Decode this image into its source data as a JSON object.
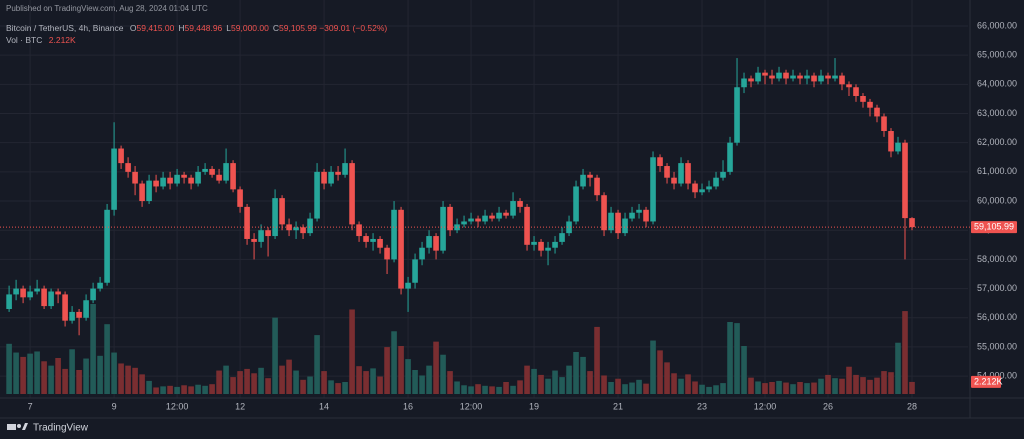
{
  "chart_data": {
    "type": "candlestick",
    "published": "Published on TradingView.com, Aug 28, 2024 01:04 UTC",
    "title": "Bitcoin / TetherUS, 4h, Binance",
    "ohlc_legend": [
      {
        "key": "O",
        "label": "59,415.00"
      },
      {
        "key": "H",
        "label": "59,448.96"
      },
      {
        "key": "L",
        "label": "59,000.00"
      },
      {
        "key": "C",
        "label": "59,105.99"
      }
    ],
    "change_label": "−309.01 (−0.52%)",
    "volume_title": "Vol · BTC",
    "volume_label": "2.212K",
    "last_price": {
      "value": 59105.99,
      "label": "59,105.99"
    },
    "footer": "TradingView",
    "up_color": "#26a69a",
    "down_color": "#ef5350",
    "volume_up_color": "#225b58",
    "volume_down_color": "#7a2e31",
    "grid": true,
    "xlim": [
      -1.3,
      137
    ],
    "ylim": [
      53250,
      66890
    ],
    "xticks": [
      {
        "value": 3,
        "label": "7"
      },
      {
        "value": 15,
        "label": "9"
      },
      {
        "value": 24,
        "label": "12:00"
      },
      {
        "value": 33,
        "label": "12"
      },
      {
        "value": 45,
        "label": "14"
      },
      {
        "value": 57,
        "label": "16"
      },
      {
        "value": 66,
        "label": "12:00"
      },
      {
        "value": 75,
        "label": "19"
      },
      {
        "value": 87,
        "label": "21"
      },
      {
        "value": 99,
        "label": "23"
      },
      {
        "value": 108,
        "label": "12:00"
      },
      {
        "value": 117,
        "label": "26"
      },
      {
        "value": 129,
        "label": "28"
      }
    ],
    "yticks": [
      {
        "value": 66000,
        "label": "66,000.00"
      },
      {
        "value": 65000,
        "label": "65,000.00"
      },
      {
        "value": 64000,
        "label": "64,000.00"
      },
      {
        "value": 63000,
        "label": "63,000.00"
      },
      {
        "value": 62000,
        "label": "62,000.00"
      },
      {
        "value": 61000,
        "label": "61,000.00"
      },
      {
        "value": 60000,
        "label": "60,000.00"
      },
      {
        "value": 59000,
        "label": "59,000.00"
      },
      {
        "value": 58000,
        "label": "58,000.00"
      },
      {
        "value": 57000,
        "label": "57,000.00"
      },
      {
        "value": 56000,
        "label": "56,000.00"
      },
      {
        "value": 55000,
        "label": "55,000.00"
      },
      {
        "value": 54000,
        "label": "54,000.00"
      }
    ],
    "open": [
      56300,
      56800,
      57000,
      56700,
      56900,
      57000,
      56400,
      56900,
      56800,
      55900,
      56200,
      56000,
      56600,
      57000,
      57200,
      59700,
      61800,
      61300,
      61000,
      60600,
      60000,
      60700,
      60500,
      60800,
      60600,
      60900,
      60800,
      60600,
      61000,
      61100,
      60900,
      60700,
      61300,
      60400,
      59800,
      58700,
      58600,
      59000,
      58800,
      60100,
      59200,
      59000,
      59100,
      58900,
      59400,
      61000,
      60600,
      61000,
      60900,
      61300,
      59200,
      58800,
      58600,
      58700,
      58400,
      58000,
      59700,
      57000,
      57200,
      58000,
      58400,
      58800,
      58300,
      59800,
      59000,
      59200,
      59300,
      59400,
      59300,
      59500,
      59400,
      59600,
      59500,
      60000,
      59800,
      58500,
      58600,
      58300,
      58400,
      58600,
      58900,
      59300,
      60500,
      60900,
      60800,
      60200,
      59000,
      59600,
      58900,
      59400,
      59600,
      59700,
      59300,
      61500,
      61200,
      60800,
      60600,
      61300,
      60600,
      60300,
      60400,
      60500,
      60800,
      61000,
      62000,
      63900,
      64200,
      64100,
      64400,
      64300,
      64200,
      64400,
      64200,
      64300,
      64200,
      64300,
      64100,
      64300,
      64200,
      64300,
      64000,
      63900,
      63600,
      63400,
      63200,
      62900,
      62400,
      61700,
      62000,
      59415
    ],
    "high": [
      57100,
      57300,
      57100,
      57100,
      57300,
      57100,
      57000,
      57000,
      56900,
      56400,
      56300,
      56800,
      57200,
      57400,
      59900,
      62700,
      61900,
      61500,
      61200,
      60700,
      60900,
      60900,
      61000,
      61000,
      61100,
      61000,
      60900,
      61200,
      61300,
      61200,
      61100,
      61800,
      61400,
      60500,
      59900,
      58900,
      59200,
      59100,
      60400,
      60200,
      59400,
      59300,
      59200,
      59600,
      61300,
      61100,
      61200,
      61200,
      61800,
      61400,
      59300,
      58900,
      58900,
      58800,
      58500,
      60000,
      59800,
      57400,
      58200,
      58600,
      59000,
      58900,
      60000,
      59900,
      59400,
      59500,
      59600,
      59500,
      59700,
      59600,
      59800,
      59700,
      60300,
      60100,
      59900,
      58800,
      58700,
      58600,
      58800,
      59100,
      59500,
      60700,
      61100,
      61000,
      60900,
      60300,
      59800,
      59700,
      59600,
      59800,
      59900,
      59800,
      61700,
      61600,
      61300,
      61000,
      61500,
      61400,
      60700,
      60600,
      60700,
      61000,
      61400,
      62200,
      64900,
      64400,
      64300,
      64600,
      64500,
      64500,
      64600,
      64500,
      64500,
      64400,
      64500,
      64400,
      64500,
      64400,
      64900,
      64400,
      64100,
      64000,
      63700,
      63500,
      63300,
      63000,
      62500,
      62200,
      62100,
      59448.96
    ],
    "low": [
      56200,
      56600,
      56500,
      56600,
      56800,
      56300,
      56300,
      56500,
      55700,
      55800,
      55400,
      55900,
      56500,
      56900,
      57100,
      59500,
      61100,
      60800,
      60200,
      59800,
      59900,
      60300,
      60400,
      60400,
      60500,
      60600,
      60400,
      60500,
      60900,
      60800,
      60600,
      60600,
      60300,
      59600,
      58500,
      58000,
      58400,
      58100,
      58700,
      59000,
      58800,
      58700,
      58700,
      58800,
      59300,
      60400,
      60500,
      60700,
      60800,
      59000,
      58600,
      58400,
      58300,
      58200,
      57500,
      57900,
      56800,
      56200,
      57000,
      57800,
      58200,
      58000,
      58200,
      58800,
      58900,
      59100,
      59200,
      59100,
      59200,
      59300,
      59300,
      59400,
      59400,
      59600,
      58300,
      58300,
      58100,
      57800,
      58200,
      58500,
      58800,
      59200,
      60400,
      60500,
      60000,
      58800,
      58900,
      58700,
      58800,
      59300,
      59400,
      59100,
      59200,
      61000,
      60600,
      60400,
      60500,
      60400,
      60100,
      60200,
      60300,
      60400,
      60700,
      60900,
      61900,
      63700,
      63900,
      64000,
      64000,
      64000,
      64100,
      64000,
      64100,
      64000,
      64000,
      63900,
      64000,
      64000,
      64100,
      63800,
      63600,
      63400,
      63200,
      62900,
      62700,
      62200,
      61500,
      61600,
      58000,
      59000
    ],
    "close": [
      56800,
      57000,
      56700,
      56900,
      57000,
      56400,
      56900,
      56800,
      55900,
      56200,
      56000,
      56600,
      57000,
      57200,
      59700,
      61800,
      61300,
      61000,
      60600,
      60000,
      60700,
      60500,
      60800,
      60600,
      60900,
      60800,
      60600,
      61000,
      61100,
      60900,
      60700,
      61300,
      60400,
      59800,
      58700,
      58600,
      59000,
      58800,
      60100,
      59200,
      59000,
      59100,
      58900,
      59400,
      61000,
      60600,
      61000,
      60900,
      61300,
      59200,
      58800,
      58600,
      58700,
      58400,
      58000,
      59700,
      57000,
      57200,
      58000,
      58400,
      58800,
      58300,
      59800,
      59000,
      59200,
      59300,
      59400,
      59300,
      59500,
      59400,
      59600,
      59500,
      60000,
      59800,
      58500,
      58600,
      58300,
      58400,
      58600,
      58900,
      59300,
      60500,
      60900,
      60800,
      60200,
      59000,
      59600,
      58900,
      59400,
      59600,
      59700,
      59300,
      61500,
      61200,
      60800,
      60600,
      61300,
      60600,
      60300,
      60400,
      60500,
      60800,
      61000,
      62000,
      63900,
      64200,
      64100,
      64400,
      64300,
      64200,
      64400,
      64200,
      64300,
      64200,
      64300,
      64100,
      64300,
      64200,
      64300,
      64000,
      63900,
      63600,
      63400,
      63200,
      62900,
      62400,
      61700,
      62000,
      59415,
      59105.99
    ],
    "volume": [
      9200,
      7600,
      6800,
      7400,
      7800,
      6000,
      5200,
      6600,
      4600,
      8200,
      4400,
      6500,
      16500,
      7000,
      12800,
      7600,
      5600,
      5200,
      4800,
      3600,
      2400,
      1200,
      1400,
      1500,
      1300,
      1600,
      1400,
      1700,
      1500,
      1800,
      4300,
      5200,
      3100,
      4200,
      4600,
      3800,
      4800,
      2900,
      14000,
      5200,
      6300,
      4300,
      2600,
      3200,
      10800,
      4200,
      2500,
      2000,
      2200,
      15500,
      5100,
      4200,
      4700,
      3200,
      8600,
      11500,
      8800,
      6400,
      4400,
      3400,
      5200,
      9600,
      7200,
      4200,
      2300,
      1600,
      1400,
      1800,
      1500,
      1400,
      1300,
      2200,
      1500,
      2500,
      5200,
      4600,
      3500,
      2800,
      4300,
      3100,
      5200,
      7700,
      6800,
      4200,
      12300,
      3400,
      2200,
      2800,
      1800,
      2100,
      2600,
      1900,
      9800,
      8000,
      5800,
      3800,
      2800,
      3600,
      2300,
      1700,
      1300,
      1600,
      2000,
      13200,
      13000,
      8800,
      3000,
      2300,
      2000,
      2200,
      2400,
      2100,
      1800,
      2200,
      2000,
      2100,
      2800,
      3500,
      2900,
      2800,
      5000,
      3500,
      3100,
      2600,
      3000,
      4200,
      4000,
      9400,
      15200,
      2212
    ]
  }
}
